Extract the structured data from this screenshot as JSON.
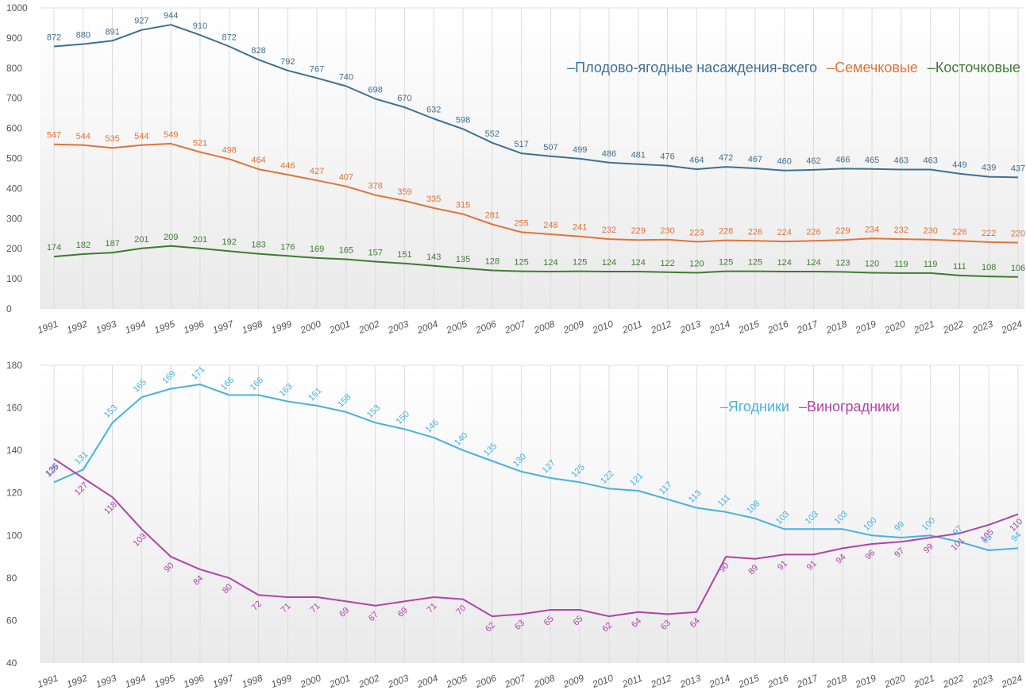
{
  "chart_data": [
    {
      "type": "line",
      "categories": [
        "1991",
        "1992",
        "1993",
        "1994",
        "1995",
        "1996",
        "1997",
        "1998",
        "1999",
        "2000",
        "2001",
        "2002",
        "2003",
        "2004",
        "2005",
        "2006",
        "2007",
        "2008",
        "2009",
        "2010",
        "2011",
        "2012",
        "2013",
        "2014",
        "2015",
        "2016",
        "2017",
        "2018",
        "2019",
        "2020",
        "2021",
        "2022",
        "2023",
        "2024"
      ],
      "series": [
        {
          "name": "Плодово-ягодные насаждения-всего",
          "color": "#3f6f93",
          "values": [
            872,
            880,
            891,
            927,
            944,
            910,
            872,
            828,
            792,
            767,
            740,
            698,
            670,
            632,
            598,
            552,
            517,
            507,
            499,
            486,
            481,
            476,
            464,
            472,
            467,
            460,
            462,
            466,
            465,
            463,
            463,
            449,
            439,
            437
          ]
        },
        {
          "name": "Семечковые",
          "color": "#e0733a",
          "values": [
            547,
            544,
            535,
            544,
            549,
            521,
            498,
            464,
            446,
            427,
            407,
            378,
            359,
            335,
            315,
            281,
            255,
            248,
            241,
            232,
            229,
            230,
            223,
            228,
            226,
            224,
            226,
            229,
            234,
            232,
            230,
            226,
            222,
            220
          ]
        },
        {
          "name": "Косточковые",
          "color": "#3e7b32",
          "values": [
            174,
            182,
            187,
            201,
            209,
            201,
            192,
            183,
            176,
            169,
            165,
            157,
            151,
            143,
            135,
            128,
            125,
            124,
            125,
            124,
            124,
            122,
            120,
            125,
            125,
            124,
            124,
            123,
            120,
            119,
            119,
            111,
            108,
            106
          ]
        }
      ],
      "ylim": [
        0,
        1000
      ],
      "yticks": [
        "0",
        "100",
        "200",
        "300",
        "400",
        "500",
        "600",
        "700",
        "800",
        "900",
        "1000"
      ],
      "grid": "vertical",
      "legend": "top-right"
    },
    {
      "type": "line",
      "categories": [
        "1991",
        "1992",
        "1993",
        "1994",
        "1995",
        "1996",
        "1997",
        "1998",
        "1999",
        "2000",
        "2001",
        "2002",
        "2003",
        "2004",
        "2005",
        "2006",
        "2007",
        "2008",
        "2009",
        "2010",
        "2011",
        "2012",
        "2013",
        "2014",
        "2015",
        "2016",
        "2017",
        "2018",
        "2019",
        "2020",
        "2021",
        "2022",
        "2023",
        "2024"
      ],
      "series": [
        {
          "name": "Ягодники",
          "color": "#45b3dd",
          "values": [
            125,
            131,
            153,
            165,
            169,
            171,
            166,
            166,
            163,
            161,
            158,
            153,
            150,
            146,
            140,
            135,
            130,
            127,
            125,
            122,
            121,
            117,
            113,
            111,
            108,
            103,
            103,
            103,
            100,
            99,
            100,
            97,
            93,
            94
          ]
        },
        {
          "name": "Виноградники",
          "color": "#b043a8",
          "values": [
            136,
            127,
            118,
            103,
            90,
            84,
            80,
            72,
            71,
            71,
            69,
            67,
            69,
            71,
            70,
            62,
            63,
            65,
            65,
            62,
            64,
            63,
            64,
            90,
            89,
            91,
            91,
            94,
            96,
            97,
            99,
            101,
            105,
            110
          ]
        }
      ],
      "ylim": [
        40,
        180
      ],
      "yticks": [
        "40",
        "60",
        "80",
        "100",
        "120",
        "140",
        "160",
        "180"
      ],
      "grid": "vertical",
      "legend": "top-right"
    }
  ]
}
